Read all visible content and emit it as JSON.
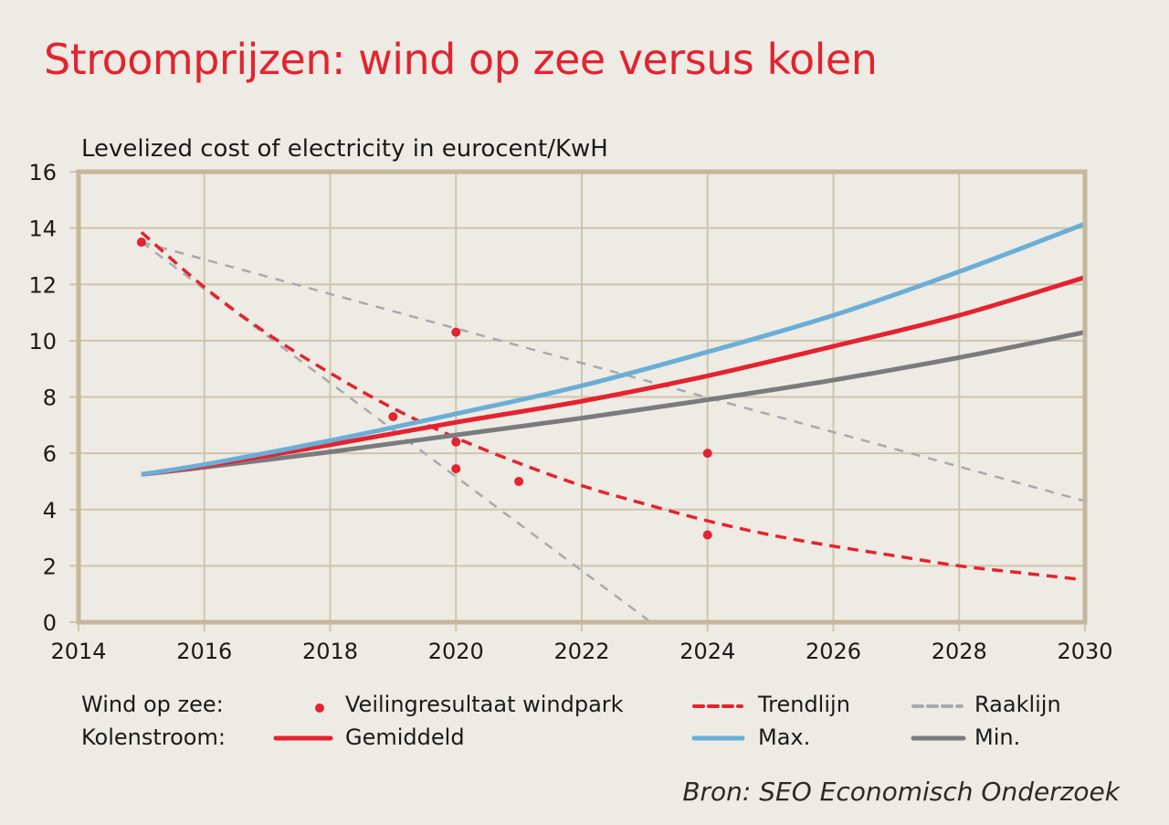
{
  "chart_data": {
    "type": "line",
    "title": "Stroomprijzen: wind op zee versus kolen",
    "ylabel": "Levelized cost of electricity in eurocent/KwH",
    "xlabel": "",
    "xlim": [
      2014,
      2030
    ],
    "ylim": [
      0,
      16
    ],
    "xticks": [
      2014,
      2016,
      2018,
      2020,
      2022,
      2024,
      2026,
      2028,
      2030
    ],
    "yticks": [
      0,
      2,
      4,
      6,
      8,
      10,
      12,
      14,
      16
    ],
    "grid": true,
    "series": [
      {
        "name": "Max.",
        "group": "Kolenstroom",
        "style": "solid",
        "color": "#6aaed6",
        "x": [
          2015,
          2016,
          2018,
          2020,
          2022,
          2024,
          2026,
          2028,
          2030
        ],
        "y": [
          5.25,
          5.6,
          6.45,
          7.4,
          8.4,
          9.6,
          10.9,
          12.45,
          14.15
        ]
      },
      {
        "name": "Gemiddeld",
        "group": "Kolenstroom",
        "style": "solid",
        "color": "#e3232f",
        "x": [
          2015,
          2016,
          2018,
          2020,
          2022,
          2024,
          2026,
          2028,
          2030
        ],
        "y": [
          5.25,
          5.55,
          6.3,
          7.1,
          7.85,
          8.75,
          9.8,
          10.9,
          12.25
        ]
      },
      {
        "name": "Min.",
        "group": "Kolenstroom",
        "style": "solid",
        "color": "#7b7b7e",
        "x": [
          2015,
          2016,
          2018,
          2020,
          2022,
          2024,
          2026,
          2028,
          2030
        ],
        "y": [
          5.25,
          5.5,
          6.05,
          6.65,
          7.25,
          7.9,
          8.6,
          9.4,
          10.3
        ]
      },
      {
        "name": "Trendlijn",
        "group": "Wind op zee",
        "style": "dashed",
        "color": "#e3232f",
        "x": [
          2015,
          2016,
          2017,
          2018,
          2019,
          2020,
          2021,
          2022,
          2023,
          2024,
          2025,
          2026,
          2027,
          2028,
          2029,
          2030
        ],
        "y": [
          13.85,
          11.9,
          10.25,
          8.85,
          7.6,
          6.55,
          5.65,
          4.85,
          4.2,
          3.6,
          3.1,
          2.7,
          2.35,
          2.0,
          1.75,
          1.5
        ]
      },
      {
        "name": "Raaklijn",
        "group": "Wind op zee",
        "style": "dashed",
        "color": "#a9a9ae",
        "x": [
          2015,
          2030
        ],
        "y": [
          13.5,
          4.3
        ]
      },
      {
        "name": "Raaklijn",
        "group": "Wind op zee",
        "style": "dashed",
        "color": "#a9a9ae",
        "x": [
          2015,
          2023.1
        ],
        "y": [
          13.5,
          0
        ]
      }
    ],
    "points": {
      "name": "Veilingresultaat windpark",
      "group": "Wind op zee",
      "color": "#e3232f",
      "x": [
        2015,
        2019,
        2020,
        2020,
        2020,
        2021,
        2024,
        2024
      ],
      "y": [
        13.5,
        7.3,
        10.3,
        6.4,
        5.45,
        5.0,
        6.0,
        3.1
      ]
    },
    "legend": {
      "placement": "bottom",
      "rows": [
        {
          "label": "Wind op zee:",
          "items": [
            {
              "label": "Veilingresultaat windpark",
              "kind": "dot",
              "color": "#e3232f"
            },
            {
              "label": "Trendlijn",
              "kind": "dashed",
              "color": "#e3232f"
            },
            {
              "label": "Raaklijn",
              "kind": "dashed",
              "color": "#a9a9ae"
            }
          ]
        },
        {
          "label": "Kolenstroom:",
          "items": [
            {
              "label": "Gemiddeld",
              "kind": "solid",
              "color": "#e3232f"
            },
            {
              "label": "Max.",
              "kind": "solid",
              "color": "#6aaed6"
            },
            {
              "label": "Min.",
              "kind": "solid",
              "color": "#7b7b7e"
            }
          ]
        }
      ]
    },
    "source": "Bron: SEO Economisch Onderzoek"
  },
  "colors": {
    "background": "#edebe3",
    "frame": "#c5b69c",
    "grid": "#cfc4ae",
    "title": "#e3232f"
  }
}
